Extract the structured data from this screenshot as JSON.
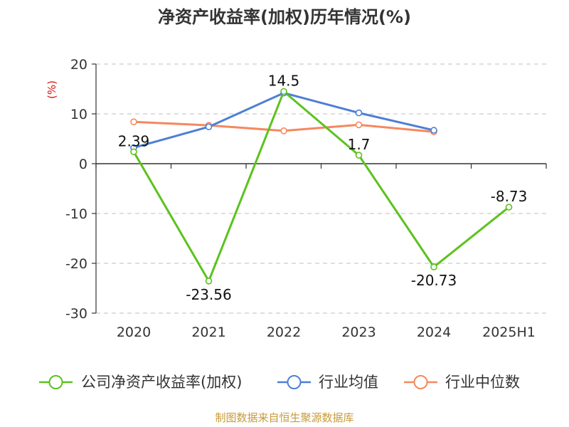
{
  "chart_data": {
    "type": "line",
    "title": "净资产收益率(加权)历年情况(%)",
    "unit_label": "(%)",
    "categories": [
      "2020",
      "2021",
      "2022",
      "2023",
      "2024",
      "2025H1"
    ],
    "ylim": [
      -30,
      20
    ],
    "yticks": [
      20,
      10,
      0,
      -10,
      -20,
      -30
    ],
    "grid": true,
    "legend_position": "bottom",
    "series": [
      {
        "name": "公司净资产收益率(加权)",
        "color": "#5cc21e",
        "values": [
          2.39,
          -23.56,
          14.5,
          1.7,
          -20.73,
          -8.73
        ],
        "labels": [
          "2.39",
          "-23.56",
          "14.5",
          "1.7",
          "-20.73",
          "-8.73"
        ]
      },
      {
        "name": "行业均值",
        "color": "#4d7fd6",
        "values": [
          3.2,
          7.4,
          14.2,
          10.2,
          6.7,
          null
        ]
      },
      {
        "name": "行业中位数",
        "color": "#f4895f",
        "values": [
          8.4,
          7.7,
          6.6,
          7.8,
          6.4,
          null
        ]
      }
    ]
  },
  "source": "制图数据来自恒生聚源数据库"
}
